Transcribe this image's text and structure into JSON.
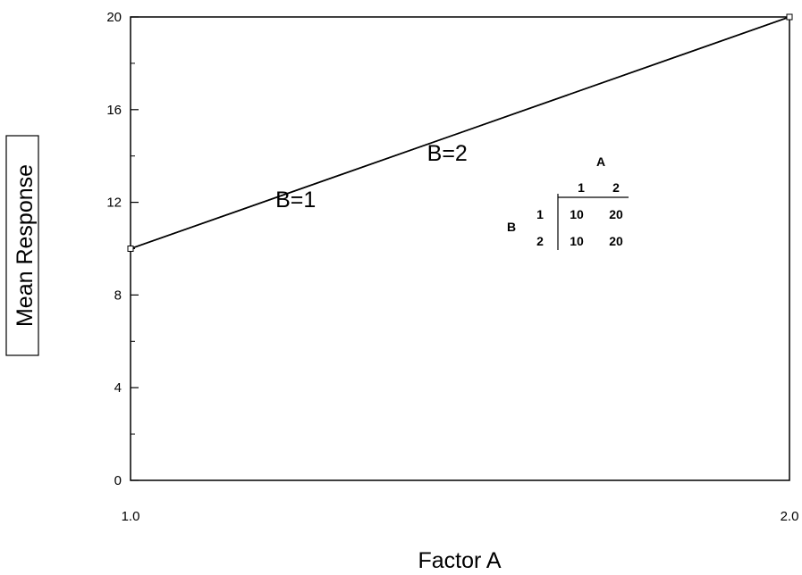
{
  "chart_data": {
    "type": "line",
    "xlabel": "Factor A",
    "ylabel": "Mean Response",
    "xlim": [
      1.0,
      2.0
    ],
    "ylim": [
      0,
      20
    ],
    "x_ticks": [
      {
        "value": 1.0,
        "label": "1.0"
      },
      {
        "value": 2.0,
        "label": "2.0"
      }
    ],
    "y_ticks": [
      {
        "value": 0,
        "label": "0"
      },
      {
        "value": 4,
        "label": "4"
      },
      {
        "value": 8,
        "label": "8"
      },
      {
        "value": 12,
        "label": "12"
      },
      {
        "value": 16,
        "label": "16"
      },
      {
        "value": 20,
        "label": "20"
      }
    ],
    "y_minor_ticks": [
      2,
      6,
      10,
      14,
      18
    ],
    "grid": false,
    "line_color": "#000000",
    "series": [
      {
        "name": "B=1",
        "x": [
          1.0,
          2.0
        ],
        "y": [
          10,
          20
        ]
      },
      {
        "name": "B=2",
        "x": [
          1.0,
          2.0
        ],
        "y": [
          10,
          20
        ]
      }
    ],
    "annotations": [
      {
        "text": "B=1",
        "x": 1.22,
        "y": 11.8
      },
      {
        "text": "B=2",
        "x": 1.45,
        "y": 13.8
      }
    ],
    "inset_table": {
      "col_factor": "A",
      "row_factor": "B",
      "col_headers": [
        "1",
        "2"
      ],
      "rows": [
        {
          "label": "1",
          "cells": [
            "10",
            "20"
          ]
        },
        {
          "label": "2",
          "cells": [
            "10",
            "20"
          ]
        }
      ]
    }
  }
}
